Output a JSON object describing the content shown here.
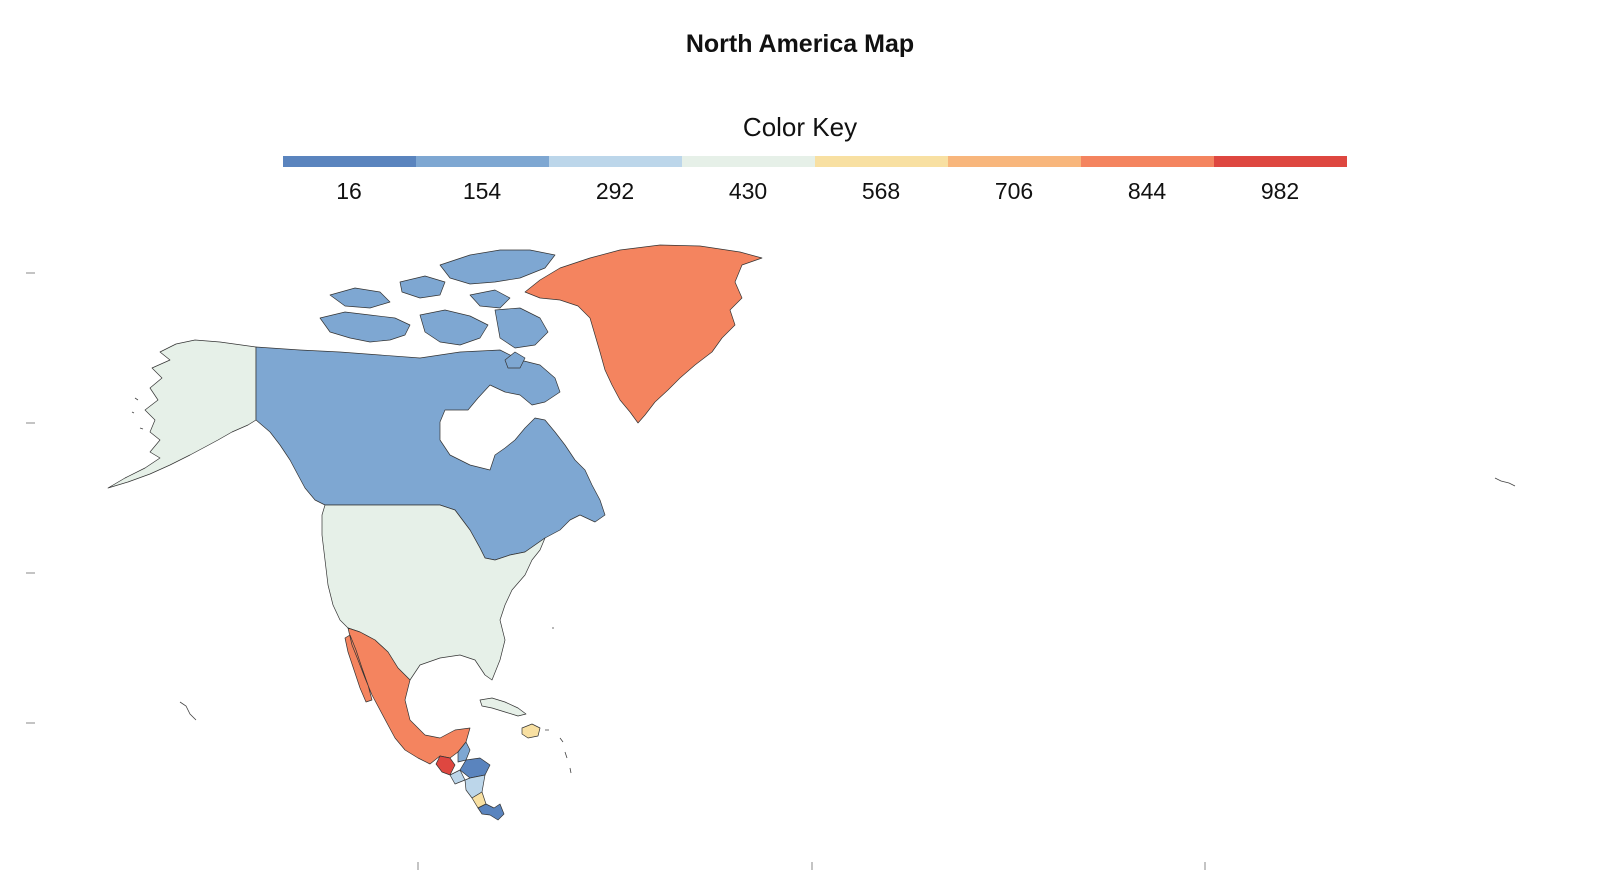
{
  "title": "North America Map",
  "legend": {
    "title": "Color Key",
    "bins": [
      {
        "label": "16",
        "color": "#5a84be"
      },
      {
        "label": "154",
        "color": "#7ea7d2"
      },
      {
        "label": "292",
        "color": "#bcd6ea"
      },
      {
        "label": "430",
        "color": "#e6f0e8"
      },
      {
        "label": "568",
        "color": "#f8e0a2"
      },
      {
        "label": "706",
        "color": "#f8b67c"
      },
      {
        "label": "844",
        "color": "#f4845f"
      },
      {
        "label": "982",
        "color": "#de4740"
      }
    ]
  },
  "map": {
    "regions": [
      {
        "name": "Alaska",
        "bin": 3
      },
      {
        "name": "Canada",
        "bin": 1
      },
      {
        "name": "Greenland",
        "bin": 6
      },
      {
        "name": "United States",
        "bin": 3
      },
      {
        "name": "Mexico",
        "bin": 6
      },
      {
        "name": "Guatemala",
        "bin": 7
      },
      {
        "name": "Belize",
        "bin": 1
      },
      {
        "name": "Honduras",
        "bin": 0
      },
      {
        "name": "El Salvador",
        "bin": 2
      },
      {
        "name": "Nicaragua",
        "bin": 2
      },
      {
        "name": "Costa Rica",
        "bin": 4
      },
      {
        "name": "Panama",
        "bin": 0
      },
      {
        "name": "Cuba",
        "bin": 3
      },
      {
        "name": "Hispaniola",
        "bin": 4
      }
    ]
  }
}
